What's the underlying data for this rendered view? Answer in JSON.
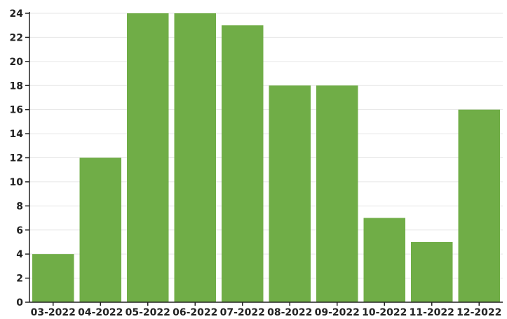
{
  "chart_data": {
    "type": "bar",
    "categories": [
      "03-2022",
      "04-2022",
      "05-2022",
      "06-2022",
      "07-2022",
      "08-2022",
      "09-2022",
      "10-2022",
      "11-2022",
      "12-2022"
    ],
    "values": [
      4,
      12,
      24,
      24,
      23,
      18,
      18,
      7,
      5,
      16
    ],
    "title": "",
    "xlabel": "",
    "ylabel": "",
    "ylim": [
      0,
      24
    ],
    "yticks": [
      0,
      2,
      4,
      6,
      8,
      10,
      12,
      14,
      16,
      18,
      20,
      22,
      24
    ],
    "grid": true,
    "bar_color": "#70ad47"
  }
}
